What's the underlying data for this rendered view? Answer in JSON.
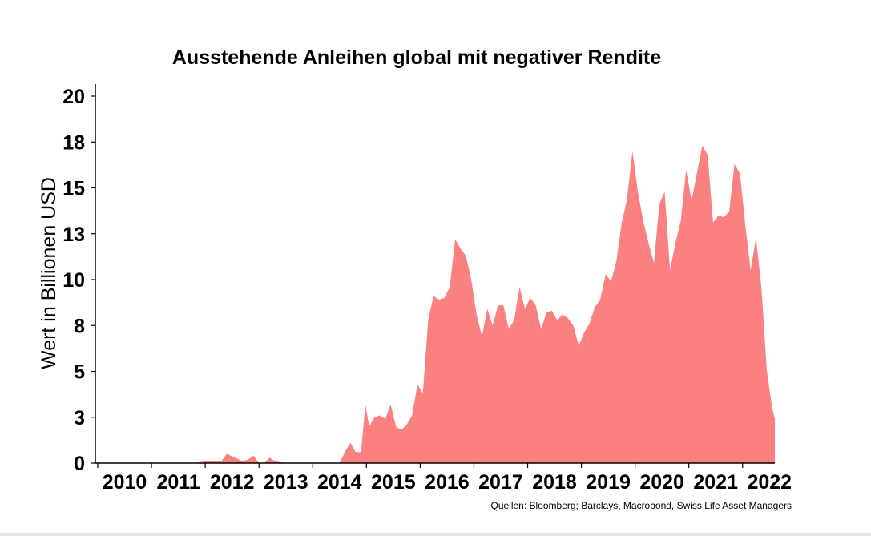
{
  "chart_data": {
    "type": "area",
    "title": "Ausstehende Anleihen global mit negativer Rendite",
    "ylabel": "Wert in Billionen USD",
    "xlabel": "",
    "source": "Quellen: Bloomberg; Barclays, Macrobond, Swiss Life Asset Managers",
    "ylim": [
      0,
      20
    ],
    "xlim": [
      2010.0,
      2022.6
    ],
    "yticks": [
      "0",
      "3",
      "5",
      "8",
      "10",
      "13",
      "15",
      "18",
      "20"
    ],
    "xticks": [
      "2010",
      "2011",
      "2012",
      "2013",
      "2014",
      "2015",
      "2016",
      "2017",
      "2018",
      "2019",
      "2020",
      "2021",
      "2022"
    ],
    "grid": false,
    "color": "#fb8080",
    "series": [
      {
        "x": [
          2010.0,
          2011.8,
          2012.0,
          2012.3,
          2012.4,
          2012.55,
          2012.7,
          2012.8,
          2012.9,
          2013.0,
          2013.1,
          2013.2,
          2013.3,
          2013.5,
          2014.5,
          2014.6,
          2014.7,
          2014.8,
          2014.9,
          2014.98,
          2015.05,
          2015.15,
          2015.25,
          2015.35,
          2015.45,
          2015.55,
          2015.65,
          2015.75,
          2015.85,
          2015.95,
          2016.05,
          2016.15,
          2016.25,
          2016.35,
          2016.45,
          2016.55,
          2016.65,
          2016.75,
          2016.85,
          2016.95,
          2017.05,
          2017.15,
          2017.25,
          2017.35,
          2017.45,
          2017.55,
          2017.65,
          2017.75,
          2017.85,
          2017.95,
          2018.05,
          2018.15,
          2018.25,
          2018.35,
          2018.45,
          2018.55,
          2018.65,
          2018.75,
          2018.85,
          2018.95,
          2019.05,
          2019.15,
          2019.25,
          2019.35,
          2019.45,
          2019.55,
          2019.65,
          2019.75,
          2019.85,
          2019.95,
          2020.05,
          2020.15,
          2020.25,
          2020.35,
          2020.45,
          2020.55,
          2020.65,
          2020.75,
          2020.85,
          2020.95,
          2021.05,
          2021.15,
          2021.25,
          2021.35,
          2021.45,
          2021.55,
          2021.65,
          2021.75,
          2021.85,
          2021.95,
          2022.05,
          2022.15,
          2022.25,
          2022.35,
          2022.45,
          2022.55,
          2022.6
        ],
        "values": [
          0.0,
          0.0,
          0.1,
          0.1,
          0.5,
          0.3,
          0.1,
          0.2,
          0.4,
          0.0,
          0.0,
          0.3,
          0.1,
          0.0,
          0.0,
          0.6,
          1.1,
          0.6,
          0.6,
          3.2,
          2.0,
          2.5,
          2.6,
          2.4,
          3.2,
          2.0,
          1.8,
          2.1,
          2.6,
          4.3,
          3.8,
          7.8,
          9.1,
          8.9,
          9.0,
          9.6,
          12.2,
          11.7,
          11.3,
          10.0,
          8.1,
          6.9,
          8.4,
          7.5,
          8.6,
          8.6,
          7.3,
          7.8,
          9.6,
          8.4,
          9.0,
          8.6,
          7.3,
          8.2,
          8.3,
          7.8,
          8.1,
          7.9,
          7.5,
          6.4,
          7.1,
          7.6,
          8.5,
          8.9,
          10.3,
          9.9,
          11.0,
          13.1,
          14.4,
          17.0,
          14.8,
          13.2,
          12.0,
          10.9,
          14.1,
          14.8,
          10.5,
          12.0,
          13.2,
          16.0,
          14.3,
          15.8,
          17.3,
          16.8,
          13.1,
          13.5,
          13.4,
          13.7,
          16.3,
          15.8,
          13.0,
          10.5,
          12.3,
          9.6,
          5.1,
          3.0,
          2.4
        ]
      }
    ]
  }
}
